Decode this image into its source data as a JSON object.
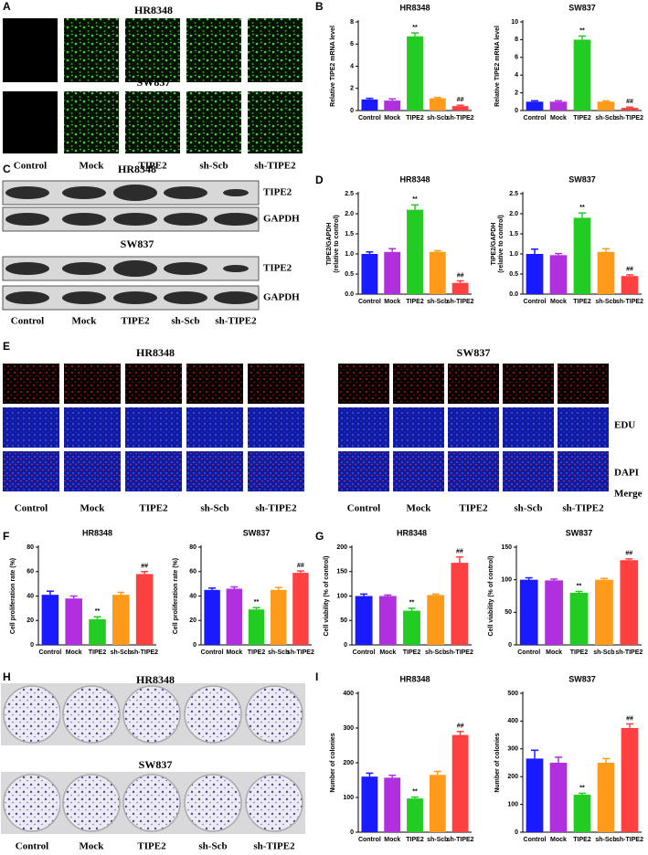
{
  "figure": {
    "letters": [
      "A",
      "B",
      "C",
      "D",
      "E",
      "F",
      "G",
      "H",
      "I"
    ],
    "A": {
      "titles": [
        "HR8348",
        "SW837"
      ],
      "captions": [
        "Control",
        "Mock",
        "TIPE2",
        "sh-Scb",
        "sh-TIPE2"
      ]
    },
    "C": {
      "titles": [
        "HR8348",
        "SW837"
      ],
      "bands": [
        "TIPE2",
        "GAPDH"
      ],
      "captions": [
        "Control",
        "Mock",
        "TIPE2",
        "sh-Scb",
        "sh-TIPE2"
      ]
    },
    "E": {
      "titles": [
        "HR8348",
        "SW837"
      ],
      "rows": [
        "EDU",
        "DAPI",
        "Merge"
      ],
      "captions": [
        "Control",
        "Mock",
        "TIPE2",
        "sh-Scb",
        "sh-TIPE2"
      ]
    },
    "H": {
      "titles": [
        "HR8348",
        "SW837"
      ],
      "captions": [
        "Control",
        "Mock",
        "TIPE2",
        "sh-Scb",
        "sh-TIPE2"
      ]
    }
  },
  "chart_data": [
    {
      "type": "bar",
      "title": "HR8348",
      "ylabel": [
        "Relative TIPE2 mRNA level"
      ],
      "categories": [
        "Control",
        "Mock",
        "TIPE2",
        "sh-Scb",
        "sh-TIPE2"
      ],
      "colors": [
        "#1a1aff",
        "#b030e0",
        "#22cc22",
        "#ff9a1a",
        "#ff4040"
      ],
      "values": [
        1.0,
        0.9,
        6.7,
        1.1,
        0.4
      ],
      "errors": [
        0.1,
        0.15,
        0.3,
        0.08,
        0.08
      ],
      "annotations": [
        null,
        null,
        "**",
        null,
        "##"
      ],
      "ylim": [
        0,
        8
      ],
      "yticks": [
        0,
        2,
        4,
        6,
        8
      ]
    },
    {
      "type": "bar",
      "title": "SW837",
      "ylabel": [
        "Relative TIPE2 mRNA level"
      ],
      "categories": [
        "Control",
        "Mock",
        "TIPE2",
        "sh-Scb",
        "sh-TIPE2"
      ],
      "colors": [
        "#1a1aff",
        "#b030e0",
        "#22cc22",
        "#ff9a1a",
        "#ff4040"
      ],
      "values": [
        1.0,
        1.0,
        8.0,
        1.0,
        0.3
      ],
      "errors": [
        0.1,
        0.1,
        0.4,
        0.08,
        0.08
      ],
      "annotations": [
        null,
        null,
        "**",
        null,
        "##"
      ],
      "ylim": [
        0,
        10
      ],
      "yticks": [
        0,
        2,
        4,
        6,
        8,
        10
      ]
    },
    {
      "type": "bar",
      "title": "HR8348",
      "ylabel": [
        "TIPE2/GAPDH",
        "(relative to control)"
      ],
      "categories": [
        "Control",
        "Mock",
        "TIPE2",
        "sh-Scb",
        "sh-TIPE2"
      ],
      "colors": [
        "#1a1aff",
        "#b030e0",
        "#22cc22",
        "#ff9a1a",
        "#ff4040"
      ],
      "values": [
        1.0,
        1.05,
        2.1,
        1.05,
        0.28
      ],
      "errors": [
        0.05,
        0.08,
        0.12,
        0.03,
        0.05
      ],
      "annotations": [
        null,
        null,
        "**",
        null,
        "##"
      ],
      "ylim": [
        0,
        2.5
      ],
      "yticks": [
        {
          "value": 0,
          "label": "0.0"
        },
        0.5,
        {
          "value": 1,
          "label": "1.0"
        },
        1.5,
        {
          "value": 2,
          "label": "2.0"
        },
        2.5
      ]
    },
    {
      "type": "bar",
      "title": "SW837",
      "ylabel": [
        "TIPE2/GAPDH",
        "(relative to control)"
      ],
      "categories": [
        "Control",
        "Mock",
        "TIPE2",
        "sh-Scb",
        "sh-TIPE2"
      ],
      "colors": [
        "#1a1aff",
        "#b030e0",
        "#22cc22",
        "#ff9a1a",
        "#ff4040"
      ],
      "values": [
        1.0,
        0.97,
        1.9,
        1.05,
        0.45
      ],
      "errors": [
        0.12,
        0.04,
        0.12,
        0.08,
        0.03
      ],
      "annotations": [
        null,
        null,
        "**",
        null,
        "##"
      ],
      "ylim": [
        0,
        2.5
      ],
      "yticks": [
        {
          "value": 0,
          "label": "0.0"
        },
        0.5,
        {
          "value": 1,
          "label": "1.0"
        },
        1.5,
        {
          "value": 2,
          "label": "2.0"
        },
        2.5
      ]
    },
    {
      "type": "bar",
      "title": "HR8348",
      "ylabel": [
        "Cell proliferation rate (%)"
      ],
      "categories": [
        "Control",
        "Mock",
        "TIPE2",
        "sh-Scb",
        "sh-TIPE2"
      ],
      "colors": [
        "#1a1aff",
        "#b030e0",
        "#22cc22",
        "#ff9a1a",
        "#ff4040"
      ],
      "values": [
        41,
        38,
        21,
        41,
        58
      ],
      "errors": [
        3,
        2,
        2,
        2,
        2
      ],
      "annotations": [
        null,
        null,
        "**",
        null,
        "##"
      ],
      "ylim": [
        0,
        80
      ],
      "yticks": [
        0,
        20,
        40,
        60,
        80
      ]
    },
    {
      "type": "bar",
      "title": "SW837",
      "ylabel": [
        "Cell proliferation rate (%)"
      ],
      "categories": [
        "Control",
        "Mock",
        "TIPE2",
        "sh-Scb",
        "sh-TIPE2"
      ],
      "colors": [
        "#1a1aff",
        "#b030e0",
        "#22cc22",
        "#ff9a1a",
        "#ff4040"
      ],
      "values": [
        45,
        46,
        29,
        45,
        59
      ],
      "errors": [
        1.5,
        1.5,
        1.5,
        2,
        1.5
      ],
      "annotations": [
        null,
        null,
        "**",
        null,
        "##"
      ],
      "ylim": [
        0,
        80
      ],
      "yticks": [
        0,
        20,
        40,
        60,
        80
      ]
    },
    {
      "type": "bar",
      "title": "HR8348",
      "ylabel": [
        "Cell viability (% of control)"
      ],
      "categories": [
        "Control",
        "Mock",
        "TIPE2",
        "sh-Scb",
        "sh-TIPE2"
      ],
      "colors": [
        "#1a1aff",
        "#b030e0",
        "#22cc22",
        "#ff9a1a",
        "#ff4040"
      ],
      "values": [
        100,
        100,
        70,
        102,
        168
      ],
      "errors": [
        4,
        2,
        5,
        2,
        12
      ],
      "annotations": [
        null,
        null,
        "**",
        null,
        "##"
      ],
      "ylim": [
        0,
        200
      ],
      "yticks": [
        0,
        50,
        100,
        150,
        200
      ]
    },
    {
      "type": "bar",
      "title": "SW837",
      "ylabel": [
        "Cell viability (% of control)"
      ],
      "categories": [
        "Control",
        "Mock",
        "TIPE2",
        "sh-Scb",
        "sh-TIPE2"
      ],
      "colors": [
        "#1a1aff",
        "#b030e0",
        "#22cc22",
        "#ff9a1a",
        "#ff4040"
      ],
      "values": [
        100,
        99,
        80,
        100,
        130
      ],
      "errors": [
        3,
        2,
        2,
        2,
        2
      ],
      "annotations": [
        null,
        null,
        "**",
        null,
        "##"
      ],
      "ylim": [
        0,
        150
      ],
      "yticks": [
        0,
        50,
        100,
        150
      ]
    },
    {
      "type": "bar",
      "title": "HR8348",
      "ylabel": [
        "Number of colonies"
      ],
      "categories": [
        "Control",
        "Mock",
        "TIPE2",
        "sh-Scb",
        "sh-TIPE2"
      ],
      "colors": [
        "#1a1aff",
        "#b030e0",
        "#22cc22",
        "#ff9a1a",
        "#ff4040"
      ],
      "values": [
        160,
        157,
        97,
        165,
        280
      ],
      "errors": [
        10,
        7,
        4,
        10,
        10
      ],
      "annotations": [
        null,
        null,
        "**",
        null,
        "##"
      ],
      "ylim": [
        0,
        400
      ],
      "yticks": [
        0,
        100,
        200,
        300,
        400
      ]
    },
    {
      "type": "bar",
      "title": "SW837",
      "ylabel": [
        "Number of colonies"
      ],
      "categories": [
        "Control",
        "Mock",
        "TIPE2",
        "sh-Scb",
        "sh-TIPE2"
      ],
      "colors": [
        "#1a1aff",
        "#b030e0",
        "#22cc22",
        "#ff9a1a",
        "#ff4040"
      ],
      "values": [
        265,
        250,
        135,
        250,
        375
      ],
      "errors": [
        30,
        20,
        5,
        15,
        15
      ],
      "annotations": [
        null,
        null,
        "**",
        null,
        "##"
      ],
      "ylim": [
        0,
        500
      ],
      "yticks": [
        0,
        100,
        200,
        300,
        400,
        500
      ]
    }
  ]
}
